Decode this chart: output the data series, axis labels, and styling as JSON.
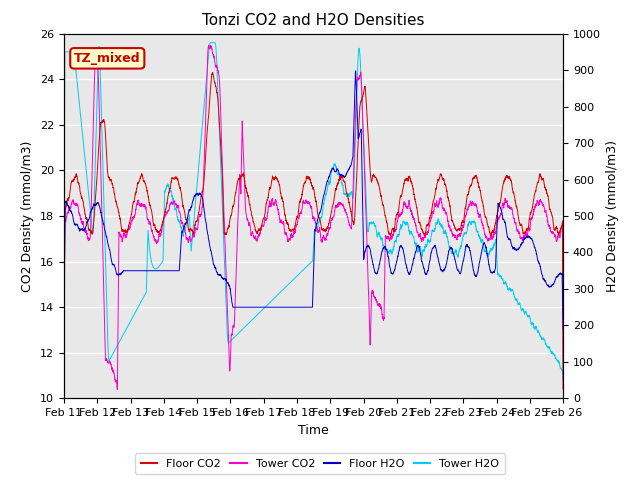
{
  "title": "Tonzi CO2 and H2O Densities",
  "xlabel": "Time",
  "ylabel_left": "CO2 Density (mmol/m3)",
  "ylabel_right": "H2O Density (mmol/m3)",
  "ylim_left": [
    10,
    26
  ],
  "ylim_right": [
    0,
    1000
  ],
  "yticks_left": [
    10,
    12,
    14,
    16,
    18,
    20,
    22,
    24,
    26
  ],
  "yticks_right": [
    0,
    100,
    200,
    300,
    400,
    500,
    600,
    700,
    800,
    900,
    1000
  ],
  "xtick_labels": [
    "Feb 11",
    "Feb 12",
    "Feb 13",
    "Feb 14",
    "Feb 15",
    "Feb 16",
    "Feb 17",
    "Feb 18",
    "Feb 19",
    "Feb 20",
    "Feb 21",
    "Feb 22",
    "Feb 23",
    "Feb 24",
    "Feb 25",
    "Feb 26"
  ],
  "annotation_text": "TZ_mixed",
  "annotation_color": "#cc0000",
  "annotation_bg": "#ffffcc",
  "annotation_border": "#cc0000",
  "colors": {
    "floor_co2": "#dd0000",
    "tower_co2": "#ff00cc",
    "floor_h2o": "#0000cc",
    "tower_h2o": "#00ccee"
  },
  "legend_labels": [
    "Floor CO2",
    "Tower CO2",
    "Floor H2O",
    "Tower H2O"
  ],
  "bg_color": "#e8e8e8",
  "n_points": 3600
}
